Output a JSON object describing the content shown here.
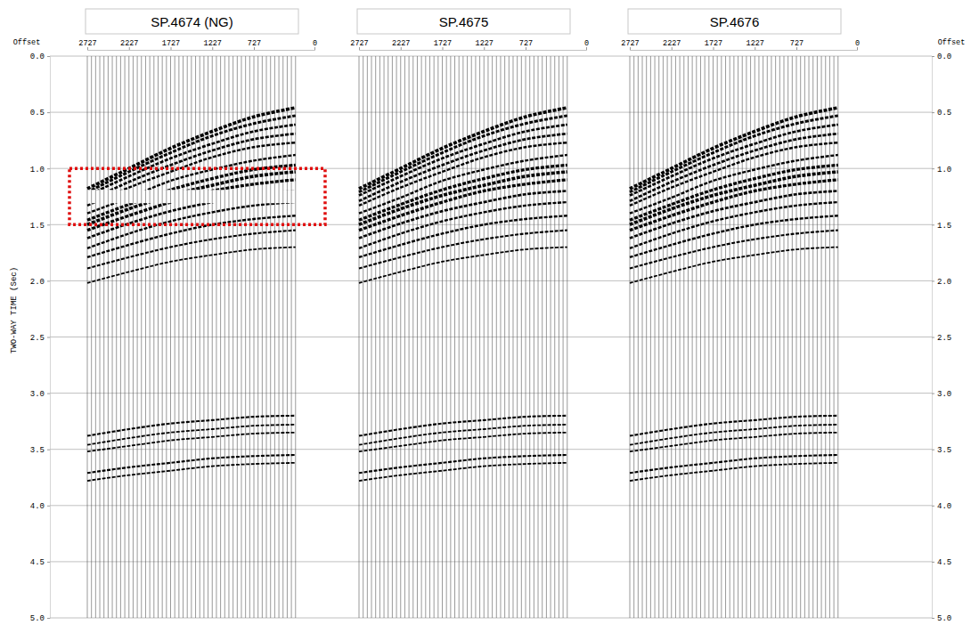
{
  "chart_data": [
    {
      "type": "wiggle",
      "title": "SP.4674 (NG)",
      "xlabel": "Offset",
      "ylabel": "TWO-WAY TIME (Sec)",
      "xlim": [
        2727,
        0
      ],
      "xticks": [
        2727,
        2227,
        1727,
        1227,
        727,
        0
      ],
      "ylim": [
        0,
        5
      ],
      "yticks": [
        {
          "value": 0,
          "label": "0.0"
        },
        {
          "value": 0.5,
          "label": "0.5"
        },
        {
          "value": 1,
          "label": "1.0"
        },
        {
          "value": 1.5,
          "label": "1.5"
        },
        {
          "value": 2,
          "label": "2.0"
        },
        {
          "value": 2.5,
          "label": "2.5"
        },
        {
          "value": 3,
          "label": "3.0"
        },
        {
          "value": 3.5,
          "label": "3.5"
        },
        {
          "value": 4,
          "label": "4.0"
        },
        {
          "value": 4.5,
          "label": "4.5"
        },
        {
          "value": 5,
          "label": "5.0"
        }
      ],
      "grid": true,
      "traces": [
        2727,
        2677,
        2627,
        2577,
        2527,
        2477,
        2427,
        2377,
        2327,
        2277,
        2227,
        2177,
        2127,
        2077,
        2027,
        1977,
        1927,
        1877,
        1827,
        1777,
        1727,
        1677,
        1627,
        1577,
        1527,
        1477,
        1427,
        1377,
        1327,
        1277,
        1227,
        1177,
        1127,
        1077,
        1027,
        977,
        927,
        877,
        827,
        777,
        727,
        677,
        627,
        577,
        527,
        477,
        427,
        377,
        327,
        277,
        227
      ],
      "event_offsets": [
        2727,
        2227,
        1727,
        1227,
        727,
        227
      ],
      "events": [
        {
          "t": [
            1.18,
            1.0,
            0.82,
            0.67,
            0.54,
            0.46
          ],
          "amplitude": 1.0
        },
        {
          "t": [
            1.21,
            1.03,
            0.86,
            0.71,
            0.6,
            0.53
          ],
          "amplitude": 0.8
        },
        {
          "t": [
            1.24,
            1.07,
            0.91,
            0.78,
            0.67,
            0.61
          ],
          "amplitude": 0.7
        },
        {
          "t": [
            1.29,
            1.12,
            0.97,
            0.84,
            0.74,
            0.69
          ],
          "amplitude": 0.7
        },
        {
          "t": [
            1.33,
            1.17,
            1.03,
            0.9,
            0.81,
            0.77
          ],
          "amplitude": 0.6
        },
        {
          "t": [
            1.4,
            1.26,
            1.11,
            1.01,
            0.93,
            0.88
          ],
          "amplitude": 0.6
        },
        {
          "t": [
            1.46,
            1.32,
            1.19,
            1.09,
            1.01,
            0.97
          ],
          "amplitude": 0.9
        },
        {
          "t": [
            1.5,
            1.36,
            1.24,
            1.15,
            1.07,
            1.03
          ],
          "amplitude": 1.0
        },
        {
          "t": [
            1.55,
            1.42,
            1.3,
            1.2,
            1.14,
            1.1
          ],
          "amplitude": 0.9
        },
        {
          "t": [
            1.62,
            1.49,
            1.38,
            1.3,
            1.23,
            1.2
          ],
          "amplitude": 0.7
        },
        {
          "t": [
            1.71,
            1.58,
            1.47,
            1.39,
            1.33,
            1.3
          ],
          "amplitude": 0.6
        },
        {
          "t": [
            1.79,
            1.68,
            1.58,
            1.5,
            1.45,
            1.42
          ],
          "amplitude": 0.6
        },
        {
          "t": [
            1.89,
            1.79,
            1.7,
            1.63,
            1.58,
            1.55
          ],
          "amplitude": 0.5
        },
        {
          "t": [
            2.02,
            1.92,
            1.83,
            1.77,
            1.72,
            1.7
          ],
          "amplitude": 0.4
        },
        {
          "t": [
            3.38,
            3.32,
            3.27,
            3.24,
            3.21,
            3.2
          ],
          "amplitude": 0.5
        },
        {
          "t": [
            3.46,
            3.4,
            3.35,
            3.32,
            3.29,
            3.28
          ],
          "amplitude": 0.4
        },
        {
          "t": [
            3.52,
            3.47,
            3.42,
            3.39,
            3.36,
            3.35
          ],
          "amplitude": 0.4
        },
        {
          "t": [
            3.71,
            3.66,
            3.62,
            3.58,
            3.56,
            3.55
          ],
          "amplitude": 0.5
        },
        {
          "t": [
            3.78,
            3.73,
            3.69,
            3.65,
            3.63,
            3.62
          ],
          "amplitude": 0.4
        }
      ],
      "dead_zone": [
        1.19,
        1.31
      ],
      "highlight": {
        "x": [
          2941,
          -128
        ],
        "t": [
          1.0,
          1.5
        ],
        "color": "#e01010",
        "line_style": "dotted"
      }
    },
    {
      "type": "wiggle",
      "title": "SP.4675",
      "tick_labels": "x",
      "xlim": [
        2727,
        0
      ],
      "xticks": [
        2727,
        2227,
        1727,
        1227,
        727,
        0
      ],
      "ylim": [
        0,
        5
      ],
      "traces": [
        2727,
        2677,
        2627,
        2577,
        2527,
        2477,
        2427,
        2377,
        2327,
        2277,
        2227,
        2177,
        2127,
        2077,
        2027,
        1977,
        1927,
        1877,
        1827,
        1777,
        1727,
        1677,
        1627,
        1577,
        1527,
        1477,
        1427,
        1377,
        1327,
        1277,
        1227,
        1177,
        1127,
        1077,
        1027,
        977,
        927,
        877,
        827,
        777,
        727,
        677,
        627,
        577,
        527,
        477,
        427,
        377,
        327,
        277,
        227
      ],
      "event_offsets": [
        2727,
        2227,
        1727,
        1227,
        727,
        227
      ],
      "events": [
        {
          "t": [
            1.18,
            1.0,
            0.82,
            0.67,
            0.54,
            0.46
          ],
          "amplitude": 1.0
        },
        {
          "t": [
            1.21,
            1.03,
            0.86,
            0.71,
            0.6,
            0.53
          ],
          "amplitude": 0.8
        },
        {
          "t": [
            1.24,
            1.07,
            0.91,
            0.78,
            0.67,
            0.61
          ],
          "amplitude": 0.7
        },
        {
          "t": [
            1.29,
            1.12,
            0.97,
            0.84,
            0.74,
            0.69
          ],
          "amplitude": 0.7
        },
        {
          "t": [
            1.33,
            1.17,
            1.03,
            0.9,
            0.81,
            0.77
          ],
          "amplitude": 0.6
        },
        {
          "t": [
            1.4,
            1.26,
            1.11,
            1.01,
            0.93,
            0.88
          ],
          "amplitude": 0.6
        },
        {
          "t": [
            1.46,
            1.32,
            1.19,
            1.09,
            1.01,
            0.97
          ],
          "amplitude": 0.9
        },
        {
          "t": [
            1.5,
            1.36,
            1.24,
            1.15,
            1.07,
            1.03
          ],
          "amplitude": 1.0
        },
        {
          "t": [
            1.55,
            1.42,
            1.3,
            1.2,
            1.14,
            1.1
          ],
          "amplitude": 0.9
        },
        {
          "t": [
            1.62,
            1.49,
            1.38,
            1.3,
            1.23,
            1.2
          ],
          "amplitude": 0.7
        },
        {
          "t": [
            1.71,
            1.58,
            1.47,
            1.39,
            1.33,
            1.3
          ],
          "amplitude": 0.6
        },
        {
          "t": [
            1.79,
            1.68,
            1.58,
            1.5,
            1.45,
            1.42
          ],
          "amplitude": 0.6
        },
        {
          "t": [
            1.89,
            1.79,
            1.7,
            1.63,
            1.58,
            1.55
          ],
          "amplitude": 0.5
        },
        {
          "t": [
            2.02,
            1.92,
            1.83,
            1.77,
            1.72,
            1.7
          ],
          "amplitude": 0.4
        },
        {
          "t": [
            3.38,
            3.32,
            3.27,
            3.24,
            3.21,
            3.2
          ],
          "amplitude": 0.5
        },
        {
          "t": [
            3.46,
            3.4,
            3.35,
            3.32,
            3.29,
            3.28
          ],
          "amplitude": 0.4
        },
        {
          "t": [
            3.52,
            3.47,
            3.42,
            3.39,
            3.36,
            3.35
          ],
          "amplitude": 0.4
        },
        {
          "t": [
            3.71,
            3.66,
            3.62,
            3.58,
            3.56,
            3.55
          ],
          "amplitude": 0.5
        },
        {
          "t": [
            3.78,
            3.73,
            3.69,
            3.65,
            3.63,
            3.62
          ],
          "amplitude": 0.4
        }
      ]
    },
    {
      "type": "wiggle",
      "title": "SP.4676",
      "xlabel": "Offset",
      "xlim": [
        2727,
        0
      ],
      "xticks": [
        2727,
        2227,
        1727,
        1227,
        727,
        0
      ],
      "ylim": [
        0,
        5
      ],
      "yticks": [
        {
          "value": 0,
          "label": "0.0"
        },
        {
          "value": 0.5,
          "label": "0.5"
        },
        {
          "value": 1,
          "label": "1.0"
        },
        {
          "value": 1.5,
          "label": "1.5"
        },
        {
          "value": 2,
          "label": "2.0"
        },
        {
          "value": 2.5,
          "label": "2.5"
        },
        {
          "value": 3,
          "label": "3.0"
        },
        {
          "value": 3.5,
          "label": "3.5"
        },
        {
          "value": 4,
          "label": "4.0"
        },
        {
          "value": 4.5,
          "label": "4.5"
        },
        {
          "value": 5,
          "label": "5.0"
        }
      ],
      "traces": [
        2727,
        2677,
        2627,
        2577,
        2527,
        2477,
        2427,
        2377,
        2327,
        2277,
        2227,
        2177,
        2127,
        2077,
        2027,
        1977,
        1927,
        1877,
        1827,
        1777,
        1727,
        1677,
        1627,
        1577,
        1527,
        1477,
        1427,
        1377,
        1327,
        1277,
        1227,
        1177,
        1127,
        1077,
        1027,
        977,
        927,
        877,
        827,
        777,
        727,
        677,
        627,
        577,
        527,
        477,
        427,
        377,
        327,
        277,
        227
      ],
      "event_offsets": [
        2727,
        2227,
        1727,
        1227,
        727,
        227
      ],
      "events": [
        {
          "t": [
            1.18,
            1.0,
            0.82,
            0.67,
            0.54,
            0.46
          ],
          "amplitude": 1.0
        },
        {
          "t": [
            1.21,
            1.03,
            0.86,
            0.71,
            0.6,
            0.53
          ],
          "amplitude": 0.8
        },
        {
          "t": [
            1.24,
            1.07,
            0.91,
            0.78,
            0.67,
            0.61
          ],
          "amplitude": 0.7
        },
        {
          "t": [
            1.29,
            1.12,
            0.97,
            0.84,
            0.74,
            0.69
          ],
          "amplitude": 0.7
        },
        {
          "t": [
            1.33,
            1.17,
            1.03,
            0.9,
            0.81,
            0.77
          ],
          "amplitude": 0.6
        },
        {
          "t": [
            1.4,
            1.26,
            1.11,
            1.01,
            0.93,
            0.88
          ],
          "amplitude": 0.6
        },
        {
          "t": [
            1.46,
            1.32,
            1.19,
            1.09,
            1.01,
            0.97
          ],
          "amplitude": 0.9
        },
        {
          "t": [
            1.5,
            1.36,
            1.24,
            1.15,
            1.07,
            1.03
          ],
          "amplitude": 1.0
        },
        {
          "t": [
            1.55,
            1.42,
            1.3,
            1.2,
            1.14,
            1.1
          ],
          "amplitude": 0.9
        },
        {
          "t": [
            1.62,
            1.49,
            1.38,
            1.3,
            1.23,
            1.2
          ],
          "amplitude": 0.7
        },
        {
          "t": [
            1.71,
            1.58,
            1.47,
            1.39,
            1.33,
            1.3
          ],
          "amplitude": 0.6
        },
        {
          "t": [
            1.79,
            1.68,
            1.58,
            1.5,
            1.45,
            1.42
          ],
          "amplitude": 0.6
        },
        {
          "t": [
            1.89,
            1.79,
            1.7,
            1.63,
            1.58,
            1.55
          ],
          "amplitude": 0.5
        },
        {
          "t": [
            2.02,
            1.92,
            1.83,
            1.77,
            1.72,
            1.7
          ],
          "amplitude": 0.4
        },
        {
          "t": [
            3.38,
            3.32,
            3.27,
            3.24,
            3.21,
            3.2
          ],
          "amplitude": 0.5
        },
        {
          "t": [
            3.46,
            3.4,
            3.35,
            3.32,
            3.29,
            3.28
          ],
          "amplitude": 0.4
        },
        {
          "t": [
            3.52,
            3.47,
            3.42,
            3.39,
            3.36,
            3.35
          ],
          "amplitude": 0.4
        },
        {
          "t": [
            3.71,
            3.66,
            3.62,
            3.58,
            3.56,
            3.55
          ],
          "amplitude": 0.5
        },
        {
          "t": [
            3.78,
            3.73,
            3.69,
            3.65,
            3.63,
            3.62
          ],
          "amplitude": 0.4
        }
      ]
    }
  ]
}
